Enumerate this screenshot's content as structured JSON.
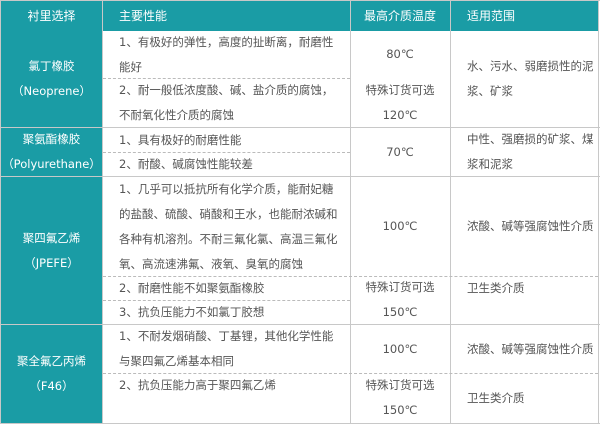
{
  "header": [
    "衬里选择",
    "主要性能",
    "最高介质温度",
    "适用范围"
  ],
  "rows": [
    {
      "name": [
        "氯丁橡胶",
        "（Neoprene）"
      ],
      "props": [
        "1、有极好的弹性，高度的扯断离，耐磨性能好",
        "2、耐一般低浓度酸、碱、盐介质的腐蚀，不耐氧化性介质的腐蚀"
      ],
      "temps": [
        "80℃",
        "特殊订货可选",
        "120℃"
      ],
      "apps": [
        "水、污水、弱磨损性的泥浆、矿浆"
      ]
    },
    {
      "name": [
        "聚氨酯橡胶",
        "（Polyurethane）"
      ],
      "props": [
        "1、具有极好的耐磨性能",
        "2、耐酸、碱腐蚀性能较差"
      ],
      "temps": [
        "70℃"
      ],
      "apps": [
        "中性、强磨损的矿浆、煤浆和泥浆"
      ]
    },
    {
      "name": [
        "聚四氟乙烯",
        "（JPEFE）"
      ],
      "props": [
        "1、几乎可以抵抗所有化学介质，能耐妃糖的盐酸、硫酸、硝酸和王水，也能耐浓碱和各种有机溶剂。不耐三氟化氯、高温三氟化氧、高流速沸氟、液氧、臭氧的腐蚀",
        "2、耐磨性能不如聚氨酯橡胶",
        "3、抗负压能力不如氯丁胶想"
      ],
      "temps": [
        "100℃",
        "特殊订货可选",
        "150℃"
      ],
      "apps": [
        "浓酸、碱等强腐蚀性介质",
        "卫生类介质"
      ]
    },
    {
      "name": [
        "聚全氟乙丙烯",
        "（F46）"
      ],
      "props": [
        "1、不耐发烟硝酸、丁基锂，其他化学性能与聚四氟乙烯基本相同",
        "2、抗负压能力高于聚四氟乙烯"
      ],
      "temps": [
        "100℃",
        "特殊订货可选",
        "150℃"
      ],
      "apps": [
        "浓酸、碱等强腐蚀性介质",
        "卫生类介质"
      ]
    }
  ],
  "colors": {
    "header_bg": "#1a9ca5",
    "border": "#c8c8c8"
  }
}
